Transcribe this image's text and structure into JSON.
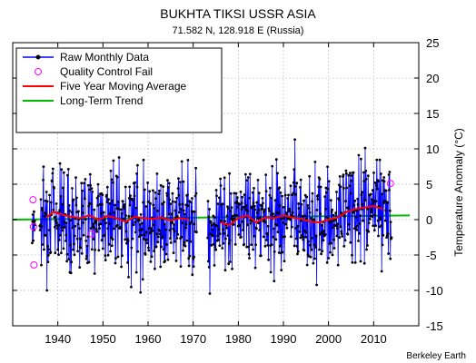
{
  "chart_data": {
    "type": "line",
    "title": "BUKHTA TIKSI USSR ASIA",
    "subtitle": "71.582 N, 128.918 E (Russia)",
    "ylabel": "Temperature Anomaly (°C)",
    "xlabel": "",
    "credit": "Berkeley Earth",
    "xlim": [
      1930,
      2020
    ],
    "ylim": [
      -15,
      25
    ],
    "x_ticks": [
      1940,
      1950,
      1960,
      1970,
      1980,
      1990,
      2000,
      2010
    ],
    "y_ticks": [
      -15,
      -10,
      -5,
      0,
      5,
      10,
      15,
      20,
      25
    ],
    "grid": true,
    "legend_position": "top-left",
    "legend": [
      {
        "label": "Raw Monthly Data",
        "color": "#0000ff",
        "style": "line-dot"
      },
      {
        "label": "Quality Control Fail",
        "color": "#ff00ff",
        "style": "open-circle"
      },
      {
        "label": "Five Year Moving Average",
        "color": "#ff0000",
        "style": "line"
      },
      {
        "label": "Long-Term Trend",
        "color": "#00bb00",
        "style": "line"
      }
    ],
    "data_segments": [
      [
        1934.3,
        1935.0
      ],
      [
        1936.0,
        1970.8
      ],
      [
        1973.2,
        2014.0
      ]
    ],
    "quality_control_fail": [
      {
        "x": 1934.5,
        "y": 2.8
      },
      {
        "x": 1934.6,
        "y": -1.0
      },
      {
        "x": 1934.7,
        "y": -6.4
      },
      {
        "x": 1947.5,
        "y": -2.0
      },
      {
        "x": 2013.7,
        "y": 5.1
      }
    ],
    "five_year_moving_average": {
      "x": [
        1937.5,
        1939,
        1941,
        1943,
        1945,
        1947,
        1949,
        1951,
        1953,
        1955,
        1957,
        1959,
        1961,
        1963,
        1965,
        1967,
        1969,
        1976,
        1978,
        1980,
        1982,
        1984,
        1986,
        1988,
        1990,
        1992,
        1994,
        1996,
        1998,
        2000,
        2002,
        2004,
        2006,
        2008,
        2010,
        2012
      ],
      "y": [
        0.3,
        1.1,
        0.7,
        0.4,
        0.2,
        0.6,
        0.0,
        0.5,
        0.2,
        -0.3,
        0.4,
        0.2,
        0.1,
        0.3,
        -0.1,
        0.2,
        0.0,
        -0.4,
        -0.8,
        0.2,
        0.6,
        -0.4,
        0.3,
        0.2,
        0.6,
        0.3,
        0.1,
        -0.3,
        -0.4,
        0.0,
        0.3,
        1.1,
        1.5,
        1.7,
        1.9,
        1.5
      ]
    },
    "long_term_trend": {
      "x": [
        1930,
        2018
      ],
      "y": [
        0.0,
        0.6
      ]
    }
  }
}
